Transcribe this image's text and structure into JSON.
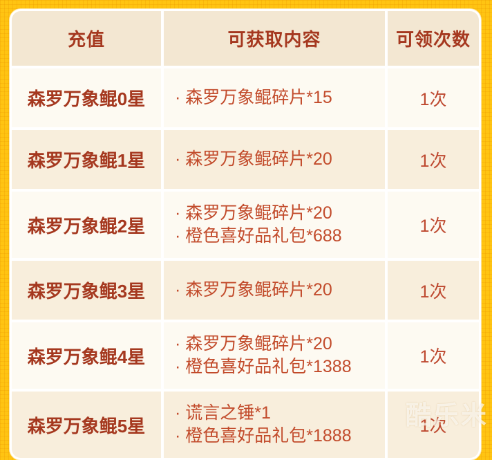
{
  "page": {
    "background_color": "#FFC412",
    "watermark": "酷乐米"
  },
  "table": {
    "columns": [
      {
        "label": "充值"
      },
      {
        "label": "可获取内容"
      },
      {
        "label": "可领次数"
      }
    ],
    "rows": [
      {
        "tier": "森罗万象鲲0星",
        "rewards": [
          "· 森罗万象鲲碎片*15"
        ],
        "times": "1次"
      },
      {
        "tier": "森罗万象鲲1星",
        "rewards": [
          "· 森罗万象鲲碎片*20"
        ],
        "times": "1次"
      },
      {
        "tier": "森罗万象鲲2星",
        "rewards": [
          "· 森罗万象鲲碎片*20",
          "· 橙色喜好品礼包*688"
        ],
        "times": "1次"
      },
      {
        "tier": "森罗万象鲲3星",
        "rewards": [
          "· 森罗万象鲲碎片*20"
        ],
        "times": "1次"
      },
      {
        "tier": "森罗万象鲲4星",
        "rewards": [
          "· 森罗万象鲲碎片*20",
          "· 橙色喜好品礼包*1388"
        ],
        "times": "1次"
      },
      {
        "tier": "森罗万象鲲5星",
        "rewards": [
          "· 谎言之锤*1",
          "· 橙色喜好品礼包*1888"
        ],
        "times": "1次"
      }
    ],
    "colors": {
      "header_bg": "#F3E7D2",
      "row_light_bg": "#FDFAF2",
      "row_cream_bg": "#F8EEDC",
      "header_text": "#A5381F",
      "tier_text": "#A5381F",
      "reward_text": "#C24B2B",
      "times_text": "#BE4930",
      "separator": "#FFFFFF",
      "page_background": "#FFC412"
    }
  }
}
